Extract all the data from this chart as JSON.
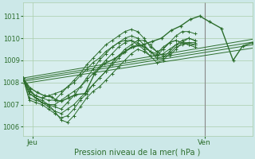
{
  "bg_color": "#cce8e8",
  "plot_bg_color": "#d8eeee",
  "grid_color": "#aaccaa",
  "line_color": "#2d6e2d",
  "vline_color": "#888888",
  "xlabel": "Pression niveau de la mer( hPa )",
  "yticks": [
    1006,
    1007,
    1008,
    1009,
    1010,
    1011
  ],
  "ylim": [
    1005.6,
    1011.6
  ],
  "xlim_data": [
    0,
    48
  ],
  "jeu_x": 2,
  "ven_x": 38,
  "xtick_positions": [
    2,
    38
  ],
  "xtick_labels": [
    "Jeu",
    "Ven"
  ],
  "vline_x": 38,
  "ensemble_series": [
    [
      1008.2,
      1007.7,
      1007.4,
      1007.3,
      1007.4,
      1007.5,
      1007.6,
      1007.8,
      1008.0,
      1008.3,
      1008.6,
      1008.9,
      1009.1,
      1009.4,
      1009.6,
      1009.8,
      1009.9,
      1009.9,
      1009.7,
      1009.5,
      1009.2,
      1009.2,
      1009.5,
      1009.8,
      1009.9,
      1009.8,
      1009.7,
      1009.6
    ],
    [
      1008.2,
      1007.7,
      1007.3,
      1007.1,
      1007.0,
      1007.0,
      1007.2,
      1007.4,
      1007.6,
      1007.8,
      1008.1,
      1008.4,
      1008.7,
      1009.0,
      1009.3,
      1009.6,
      1009.8,
      1009.9,
      1009.8,
      1009.6,
      1009.4,
      1009.3,
      1009.6,
      1009.8,
      1009.9,
      1009.8,
      1009.7,
      1009.7
    ],
    [
      1008.2,
      1007.5,
      1007.3,
      1007.1,
      1006.9,
      1006.7,
      1006.6,
      1006.8,
      1007.0,
      1007.3,
      1007.6,
      1007.9,
      1008.2,
      1008.5,
      1008.8,
      1009.1,
      1009.4,
      1009.6,
      1009.7,
      1009.6,
      1009.4,
      1009.2,
      1009.3,
      1009.5,
      1009.7,
      1009.8,
      1009.8,
      1009.7
    ],
    [
      1008.2,
      1007.3,
      1007.2,
      1007.1,
      1007.0,
      1006.7,
      1006.3,
      1006.2,
      1006.5,
      1006.9,
      1007.3,
      1007.6,
      1007.8,
      1008.1,
      1008.4,
      1008.7,
      1009.0,
      1009.3,
      1009.5,
      1009.4,
      1009.2,
      1008.9,
      1009.0,
      1009.3,
      1009.6,
      1009.7,
      1009.8,
      1009.8
    ],
    [
      1008.2,
      1007.5,
      1007.3,
      1007.2,
      1007.0,
      1006.9,
      1006.8,
      1007.1,
      1007.4,
      1007.8,
      1008.2,
      1008.6,
      1009.0,
      1009.3,
      1009.6,
      1009.8,
      1010.0,
      1010.1,
      1010.0,
      1009.7,
      1009.4,
      1009.1,
      1009.1,
      1009.4,
      1009.7,
      1009.9,
      1010.0,
      1009.9
    ],
    [
      1008.2,
      1007.2,
      1007.1,
      1007.0,
      1006.8,
      1006.6,
      1006.4,
      1006.5,
      1006.8,
      1007.2,
      1007.5,
      1007.9,
      1008.2,
      1008.5,
      1008.9,
      1009.2,
      1009.5,
      1009.7,
      1009.9,
      1009.9,
      1009.7,
      1009.4,
      1009.2,
      1009.2,
      1009.5,
      1009.8,
      1010.0,
      1009.9
    ],
    [
      1008.2,
      1007.6,
      1007.4,
      1007.3,
      1007.2,
      1007.2,
      1007.5,
      1007.8,
      1008.1,
      1008.4,
      1008.8,
      1009.1,
      1009.4,
      1009.7,
      1009.9,
      1010.1,
      1010.3,
      1010.4,
      1010.3,
      1010.0,
      1009.6,
      1009.4,
      1009.5,
      1009.8,
      1010.1,
      1010.3,
      1010.3,
      1010.2
    ]
  ],
  "trend_lines": [
    {
      "x0": 0,
      "y0": 1007.95,
      "x1": 48,
      "y1": 1009.55
    },
    {
      "x0": 0,
      "y0": 1008.05,
      "x1": 48,
      "y1": 1009.7
    },
    {
      "x0": 0,
      "y0": 1008.12,
      "x1": 48,
      "y1": 1009.82
    },
    {
      "x0": 0,
      "y0": 1008.2,
      "x1": 48,
      "y1": 1009.95
    }
  ],
  "main_x": [
    0,
    1.5,
    3,
    4.5,
    6,
    7,
    8,
    9.5,
    11,
    13,
    15,
    17,
    19,
    21,
    23,
    25,
    27,
    29,
    31,
    33,
    35,
    37,
    39,
    41.5,
    44,
    46,
    48
  ],
  "main_y": [
    1008.2,
    1007.75,
    1007.55,
    1007.4,
    1007.35,
    1007.2,
    1007.15,
    1007.3,
    1007.45,
    1007.5,
    1008.4,
    1008.85,
    1009.05,
    1009.35,
    1009.6,
    1009.7,
    1009.85,
    1010.0,
    1010.35,
    1010.55,
    1010.85,
    1011.0,
    1010.75,
    1010.45,
    1009.0,
    1009.65,
    1009.8
  ]
}
